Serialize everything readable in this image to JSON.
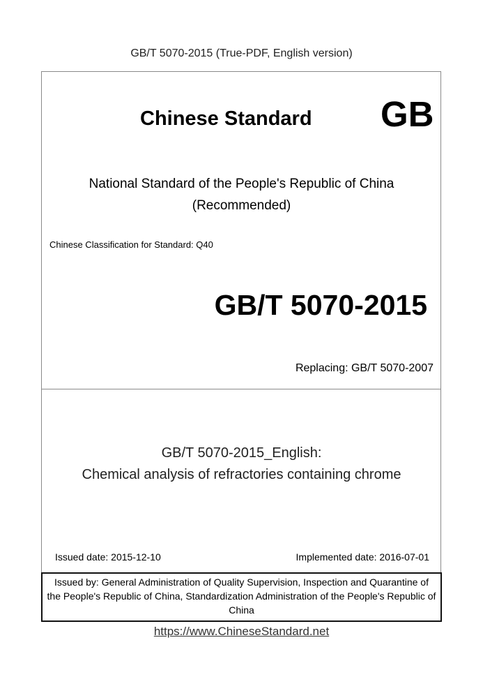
{
  "header": {
    "title": "GB/T 5070-2015 (True-PDF, English version)"
  },
  "cover": {
    "standard_label": "Chinese Standard",
    "gb_mark": "GB",
    "national_line1": "National Standard of the People's Republic of China",
    "national_line2": "(Recommended)",
    "classification": "Chinese Classification for Standard: Q40",
    "standard_number": "GB/T 5070-2015",
    "replacing": "Replacing: GB/T 5070-2007"
  },
  "title_section": {
    "line1": "GB/T 5070-2015_English:",
    "line2": "Chemical analysis of refractories containing chrome",
    "issued_date": "Issued date: 2015-12-10",
    "implemented_date": "Implemented date: 2016-07-01"
  },
  "issuer": {
    "line1": "Issued by: General Administration of Quality Supervision, Inspection and Quarantine of",
    "line2": "the People's Republic of China, Standardization Administration of the People's Republic of",
    "line3": "China"
  },
  "footer": {
    "url": "https://www.ChineseStandard.net"
  }
}
